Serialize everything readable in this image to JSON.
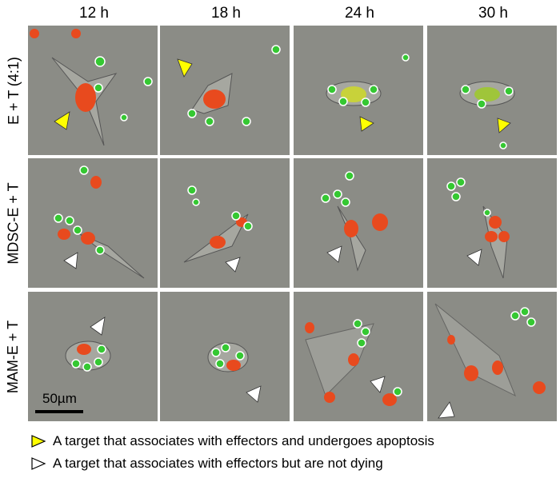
{
  "columns": [
    "12 h",
    "18 h",
    "24 h",
    "30 h"
  ],
  "rows": [
    "E + T (4:1)",
    "MDSC-E + T",
    "MAM-E + T"
  ],
  "scale_bar": "50µm",
  "legend": [
    {
      "color": "#ffff00",
      "text": "A target that associates with effectors and undergoes apoptosis"
    },
    {
      "color": "#ffffff",
      "text": "A target that associates with effectors but are not dying"
    }
  ],
  "colors": {
    "target": "#e84a1e",
    "effector": "#35c832",
    "background": "#8b8c86"
  }
}
